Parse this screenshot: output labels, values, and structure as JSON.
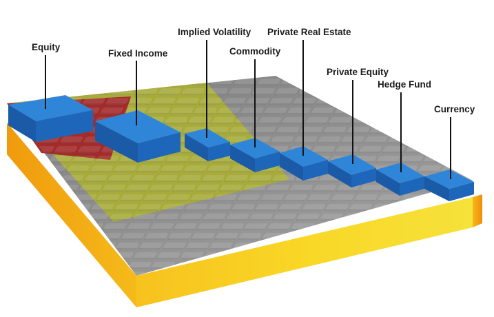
{
  "diagram": {
    "labels": {
      "equity": "Equity",
      "fixed_income": "Fixed Income",
      "implied_volatility": "Implied Volatility",
      "private_real_estate": "Private Real Estate",
      "commodity": "Commodity",
      "private_equity": "Private Equity",
      "hedge_fund": "Hedge Fund",
      "currency": "Currency"
    },
    "colors": {
      "block_blue": "#1f6fc0",
      "region_red": "#a82a2a",
      "region_olive": "#a3a83a",
      "region_gray": "#8f8f8f",
      "base_orange": "#f2a20e",
      "base_yellow": "#f5d21a"
    }
  }
}
